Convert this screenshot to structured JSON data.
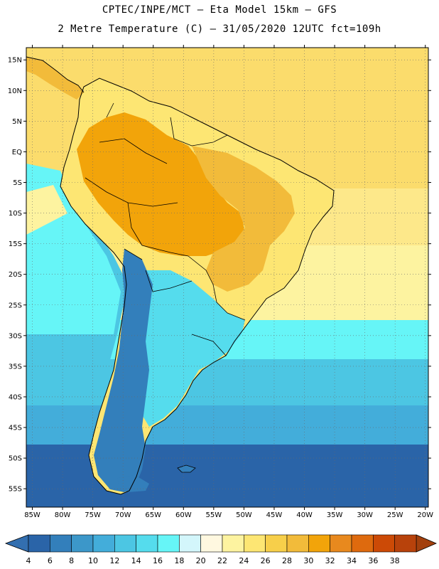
{
  "title": {
    "line1": "CPTEC/INPE/MCT –  Eta Model 15km – GFS",
    "line2": "2 Metre Temperature (C) – 31/05/2020 12UTC fct=109h"
  },
  "map": {
    "lat_labels": [
      "15N",
      "10N",
      "5N",
      "EQ",
      "5S",
      "10S",
      "15S",
      "20S",
      "25S",
      "30S",
      "35S",
      "40S",
      "45S",
      "50S",
      "55S"
    ],
    "lat_values": [
      15,
      10,
      5,
      0,
      -5,
      -10,
      -15,
      -20,
      -25,
      -30,
      -35,
      -40,
      -45,
      -50,
      -55
    ],
    "lon_labels": [
      "85W",
      "80W",
      "75W",
      "70W",
      "65W",
      "60W",
      "55W",
      "50W",
      "45W",
      "40W",
      "35W",
      "30W",
      "25W",
      "20W"
    ],
    "lon_values": [
      -85,
      -80,
      -75,
      -70,
      -65,
      -60,
      -55,
      -50,
      -45,
      -40,
      -35,
      -30,
      -25,
      -20
    ],
    "extent": {
      "lon_min": -86,
      "lon_max": -19.5,
      "lat_min": -58,
      "lat_max": 17
    }
  },
  "colorbar": {
    "labels": [
      "4",
      "6",
      "8",
      "10",
      "12",
      "14",
      "16",
      "18",
      "20",
      "22",
      "24",
      "26",
      "28",
      "30",
      "32",
      "34",
      "36",
      "38"
    ],
    "colors": [
      "#2a64a8",
      "#337fbb",
      "#3c97c9",
      "#43adda",
      "#4cc6e3",
      "#55dced",
      "#66f5f7",
      "#d3f6fb",
      "#fff8e0",
      "#fdf3a0",
      "#fde673",
      "#f7cf4a",
      "#f2bb3a",
      "#f2a40a",
      "#e8891e",
      "#de6a0e",
      "#cc4a06",
      "#b8420b"
    ],
    "low_color": "#336fb0",
    "high_color": "#a3400d"
  },
  "colors": {
    "ocean_tropical": "#fbdc6c",
    "ocean_warm": "#fde88a",
    "ocean_subtropical": "#fdf3a0",
    "ocean_mid": "#66f5f7",
    "ocean_cool": "#4cc6e3",
    "ocean_cold": "#43adda",
    "ocean_polar": "#2a64a8",
    "land_hot": "#f2a40a",
    "land_warm": "#f2bb3a",
    "land_mild": "#fde673",
    "land_cool": "#55dced",
    "land_cold": "#337fbb"
  }
}
